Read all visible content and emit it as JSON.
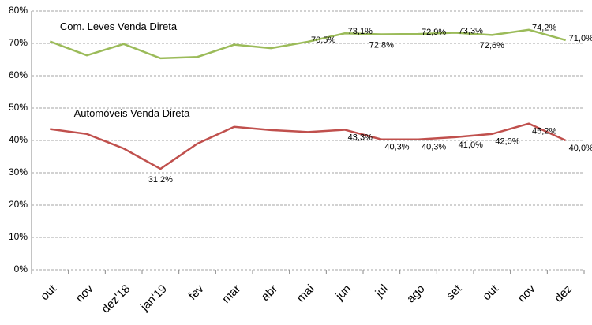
{
  "chart_data": {
    "type": "line",
    "categories": [
      "out",
      "nov",
      "dez'18",
      "jan'19",
      "fev",
      "mar",
      "abr",
      "mai",
      "jun",
      "jul",
      "ago",
      "set",
      "out",
      "nov",
      "dez"
    ],
    "series": [
      {
        "name": "Com. Leves Venda Direta",
        "color": "#9bbb59",
        "values": [
          70.6,
          66.3,
          69.8,
          65.4,
          65.8,
          69.6,
          68.5,
          70.5,
          73.1,
          72.8,
          72.9,
          73.3,
          72.6,
          74.2,
          71.0
        ],
        "value_labels": [
          null,
          null,
          null,
          null,
          null,
          null,
          null,
          "70,5%",
          "73,1%",
          "72,8%",
          "72,9%",
          "73,3%",
          "72,6%",
          "74,2%",
          "71,0%"
        ]
      },
      {
        "name": "Automóveis Venda Direta",
        "color": "#c0504d",
        "values": [
          43.5,
          42.0,
          37.5,
          31.2,
          39.0,
          44.2,
          43.2,
          42.6,
          43.3,
          40.3,
          40.3,
          41.0,
          42.0,
          45.2,
          40.0
        ],
        "value_labels": [
          null,
          null,
          null,
          "31,2%",
          null,
          null,
          null,
          null,
          "43,3%",
          "40,3%",
          "40,3%",
          "41,0%",
          "42,0%",
          "45,2%",
          "40,0%"
        ]
      }
    ],
    "ylim": [
      0,
      80
    ],
    "yticks": [
      {
        "value": 0,
        "label": "0%"
      },
      {
        "value": 10,
        "label": "10%"
      },
      {
        "value": 20,
        "label": "20%"
      },
      {
        "value": 30,
        "label": "30%"
      },
      {
        "value": 40,
        "label": "40%"
      },
      {
        "value": 50,
        "label": "50%"
      },
      {
        "value": 60,
        "label": "60%"
      },
      {
        "value": 70,
        "label": "70%"
      },
      {
        "value": 80,
        "label": "80%"
      }
    ],
    "grid": true
  }
}
